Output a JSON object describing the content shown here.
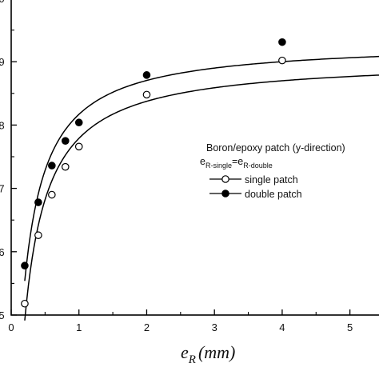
{
  "chart_data": {
    "type": "scatter",
    "xlabel_var": "e",
    "xlabel_sub": "R",
    "xlabel_unit": "(mm)",
    "xlim": [
      0,
      5.5
    ],
    "ylim": [
      0.5,
      1.0
    ],
    "x_ticks": [
      "0",
      "1",
      "2",
      "3",
      "4",
      "5"
    ],
    "y_ticks_visible": [
      "0",
      "9",
      "8",
      "7",
      "6",
      "5"
    ],
    "grid": false,
    "legend": {
      "title": "Boron/epoxy patch (y-direction)",
      "eq_lhs": "e",
      "eq_lhs_sub": "R-single",
      "eq_mid": "=e",
      "eq_rhs_sub": "R-double",
      "placement": "right"
    },
    "series": [
      {
        "name": "single patch",
        "marker": "open-circle",
        "x": [
          0.2,
          0.4,
          0.6,
          0.8,
          1.0,
          2.0,
          4.0
        ],
        "y": [
          0.518,
          0.626,
          0.69,
          0.734,
          0.766,
          0.848,
          0.902
        ]
      },
      {
        "name": "double patch",
        "marker": "filled-circle",
        "x": [
          0.2,
          0.4,
          0.6,
          0.8,
          1.0,
          2.0,
          4.0
        ],
        "y": [
          0.578,
          0.678,
          0.736,
          0.775,
          0.804,
          0.879,
          0.931
        ]
      }
    ]
  }
}
